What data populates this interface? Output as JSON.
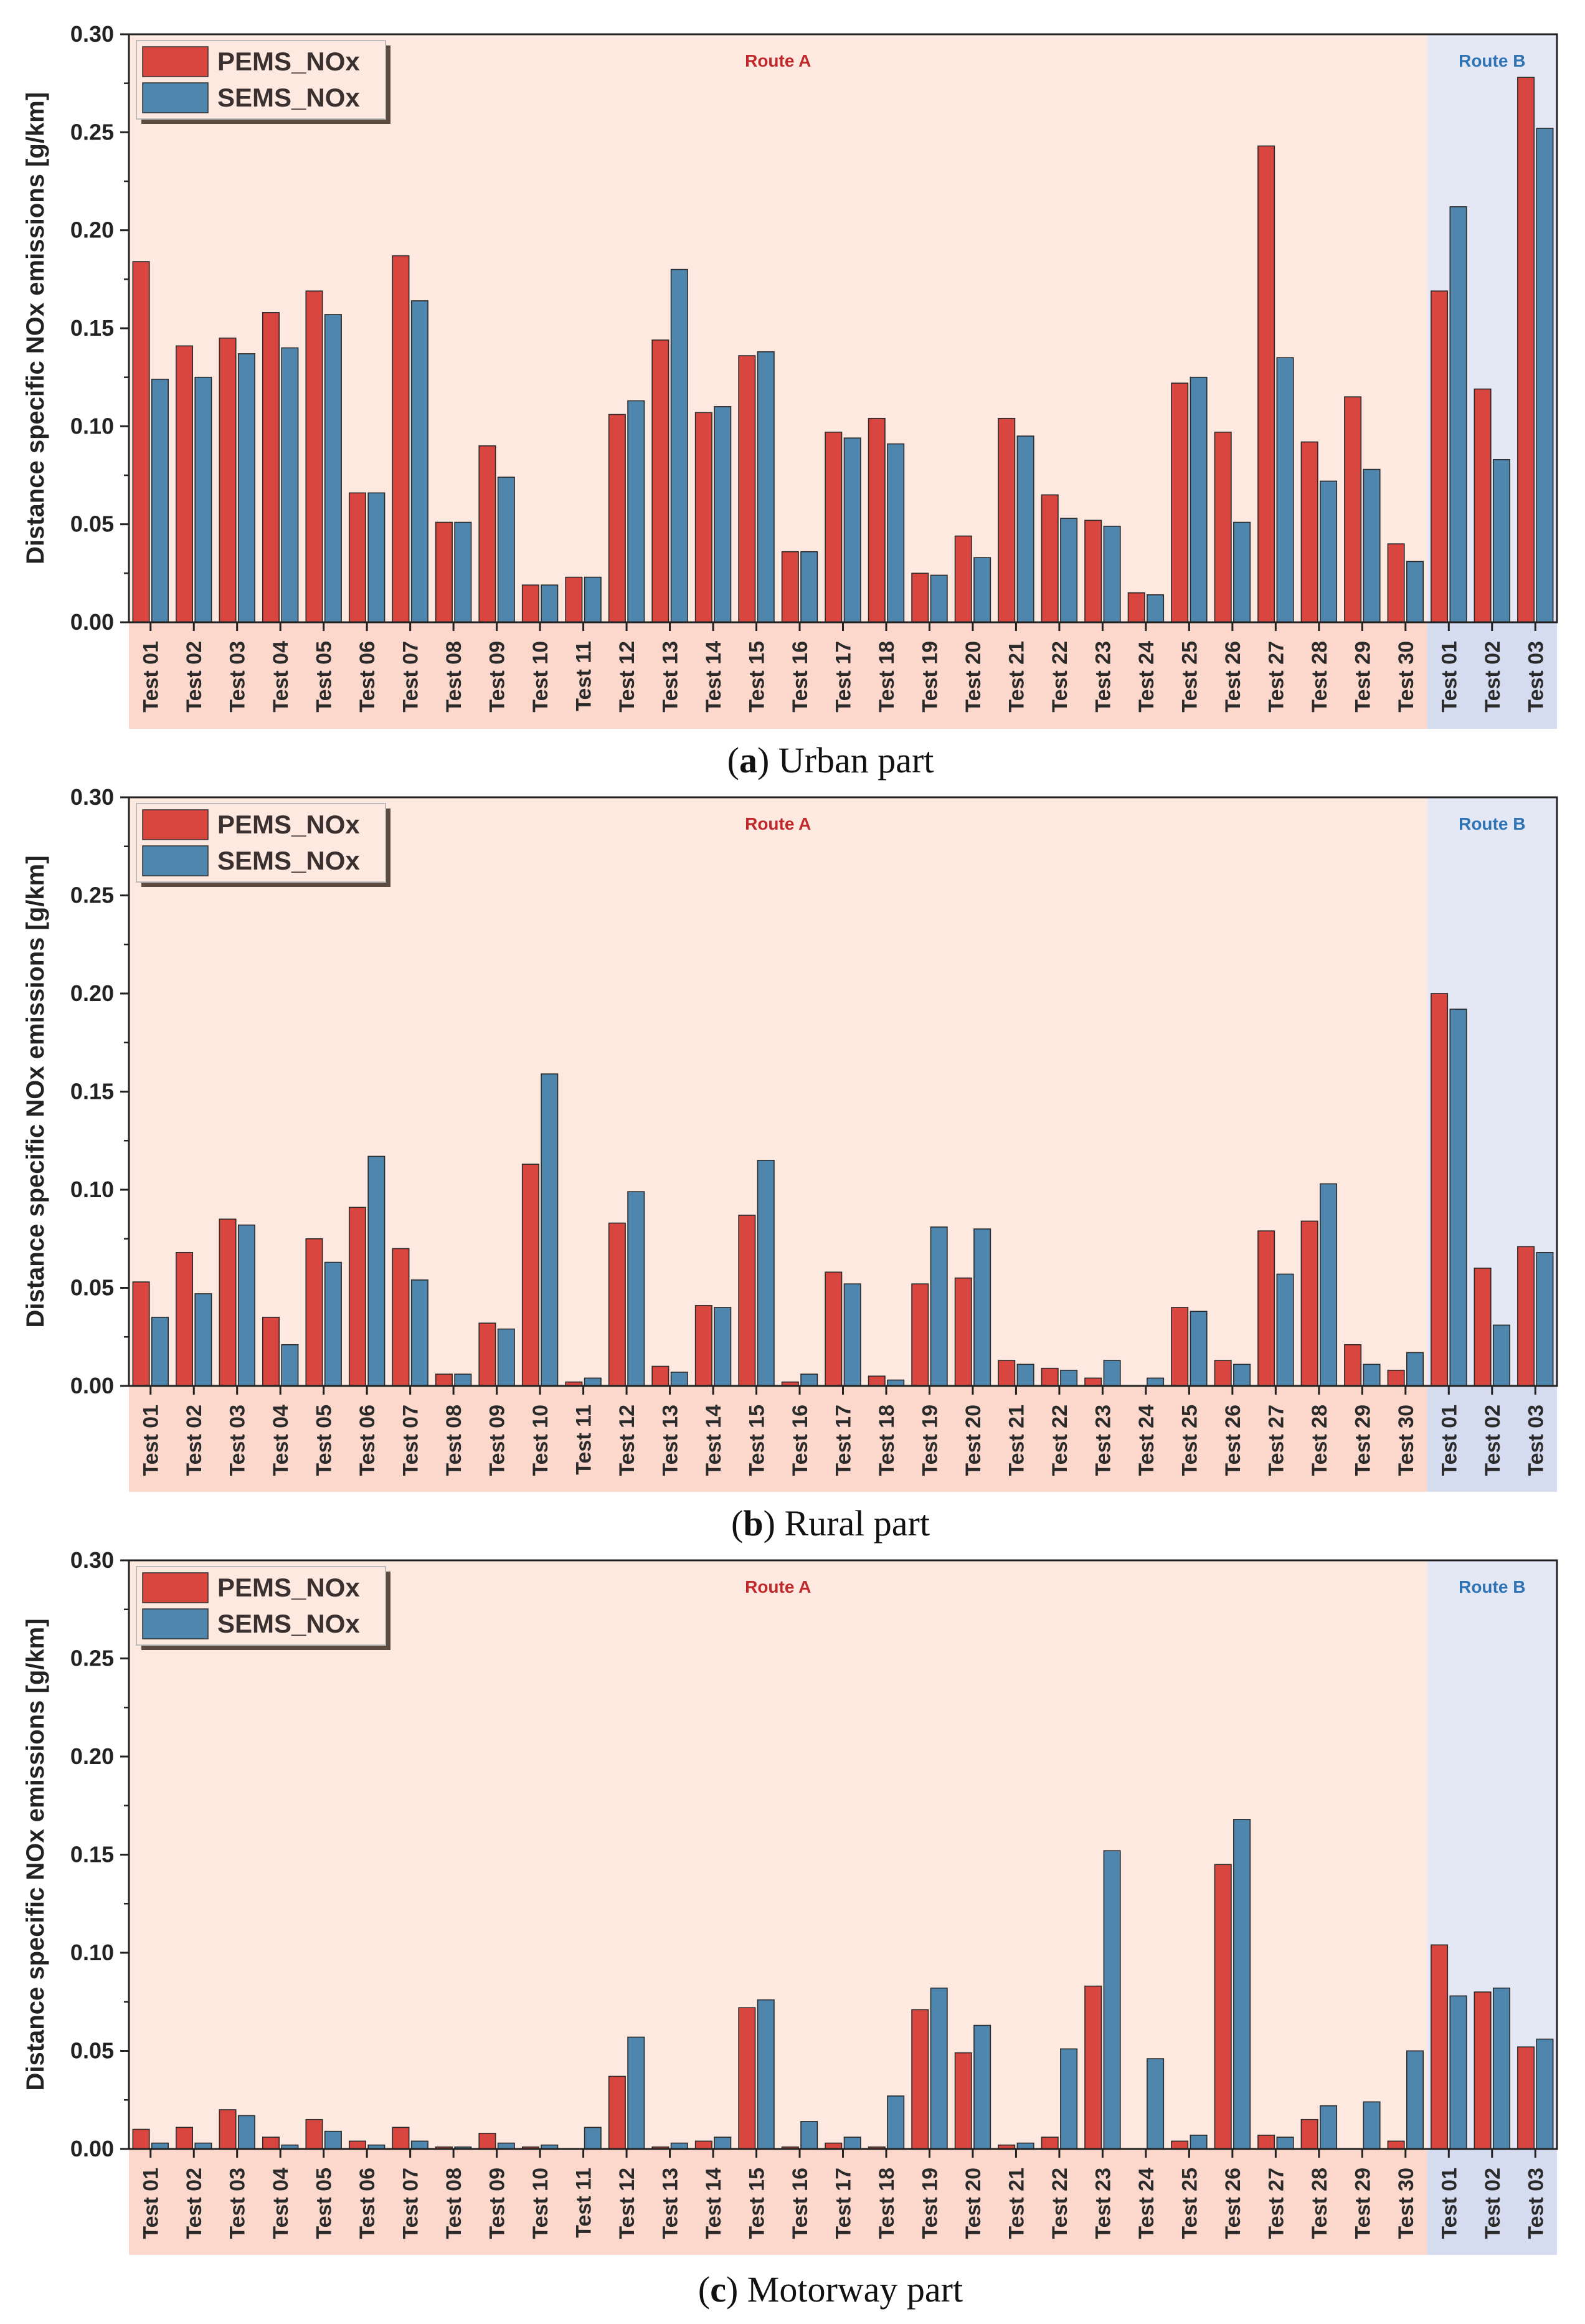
{
  "colors": {
    "pems": "#d9453f",
    "sems": "#4f86ad",
    "route_a_bg": "#fde9e0",
    "route_b_bg": "#e4e8f5",
    "route_a_text": "#c0282c",
    "route_b_text": "#2e74b5",
    "route_a_label_bg": "#fbd8cb",
    "route_b_label_bg": "#d6dcf0"
  },
  "chart_data": [
    {
      "type": "bar",
      "caption_letter": "a",
      "caption_text": " Urban part",
      "caption_open": "(",
      "caption_close": ")",
      "ylabel": "Distance specific NOx emissions [g/km]",
      "ylim": [
        0,
        0.3
      ],
      "yticks": [
        "0.00",
        "0.05",
        "0.10",
        "0.15",
        "0.20",
        "0.25",
        "0.30"
      ],
      "grid": false,
      "legend": [
        "PEMS_NOx",
        "SEMS_NOx"
      ],
      "legend_position": "top-left",
      "regions": [
        "Route A",
        "Route B"
      ],
      "categories": [
        "Test 01",
        "Test 02",
        "Test 03",
        "Test 04",
        "Test 05",
        "Test 06",
        "Test 07",
        "Test 08",
        "Test 09",
        "Test 10",
        "Test 11",
        "Test 12",
        "Test 13",
        "Test 14",
        "Test 15",
        "Test 16",
        "Test 17",
        "Test 18",
        "Test 19",
        "Test 20",
        "Test 21",
        "Test 22",
        "Test 23",
        "Test 24",
        "Test 25",
        "Test 26",
        "Test 27",
        "Test 28",
        "Test 29",
        "Test 30",
        "Test 01",
        "Test 02",
        "Test 03"
      ],
      "series": [
        {
          "name": "PEMS_NOx",
          "values": [
            0.184,
            0.141,
            0.145,
            0.158,
            0.169,
            0.066,
            0.187,
            0.051,
            0.09,
            0.019,
            0.023,
            0.106,
            0.144,
            0.107,
            0.136,
            0.036,
            0.097,
            0.104,
            0.025,
            0.044,
            0.104,
            0.065,
            0.052,
            0.015,
            0.122,
            0.097,
            0.243,
            0.092,
            0.115,
            0.04,
            0.169,
            0.119,
            0.278
          ]
        },
        {
          "name": "SEMS_NOx",
          "values": [
            0.124,
            0.125,
            0.137,
            0.14,
            0.157,
            0.066,
            0.164,
            0.051,
            0.074,
            0.019,
            0.023,
            0.113,
            0.18,
            0.11,
            0.138,
            0.036,
            0.094,
            0.091,
            0.024,
            0.033,
            0.095,
            0.053,
            0.049,
            0.014,
            0.125,
            0.051,
            0.135,
            0.072,
            0.078,
            0.031,
            0.212,
            0.083,
            0.252
          ]
        }
      ]
    },
    {
      "type": "bar",
      "caption_letter": "b",
      "caption_text": " Rural part",
      "caption_open": "(",
      "caption_close": ")",
      "ylabel": "Distance specific NOx emissions [g/km]",
      "ylim": [
        0,
        0.3
      ],
      "yticks": [
        "0.00",
        "0.05",
        "0.10",
        "0.15",
        "0.20",
        "0.25",
        "0.30"
      ],
      "grid": false,
      "legend": [
        "PEMS_NOx",
        "SEMS_NOx"
      ],
      "legend_position": "top-left",
      "regions": [
        "Route A",
        "Route B"
      ],
      "categories": [
        "Test 01",
        "Test 02",
        "Test 03",
        "Test 04",
        "Test 05",
        "Test 06",
        "Test 07",
        "Test 08",
        "Test 09",
        "Test 10",
        "Test 11",
        "Test 12",
        "Test 13",
        "Test 14",
        "Test 15",
        "Test 16",
        "Test 17",
        "Test 18",
        "Test 19",
        "Test 20",
        "Test 21",
        "Test 22",
        "Test 23",
        "Test 24",
        "Test 25",
        "Test 26",
        "Test 27",
        "Test 28",
        "Test 29",
        "Test 30",
        "Test 01",
        "Test 02",
        "Test 03"
      ],
      "series": [
        {
          "name": "PEMS_NOx",
          "values": [
            0.053,
            0.068,
            0.085,
            0.035,
            0.075,
            0.091,
            0.07,
            0.006,
            0.032,
            0.113,
            0.002,
            0.083,
            0.01,
            0.041,
            0.087,
            0.002,
            0.058,
            0.005,
            0.052,
            0.055,
            0.013,
            0.009,
            0.004,
            0.0,
            0.04,
            0.013,
            0.079,
            0.084,
            0.021,
            0.008,
            0.2,
            0.06,
            0.071
          ]
        },
        {
          "name": "SEMS_NOx",
          "values": [
            0.035,
            0.047,
            0.082,
            0.021,
            0.063,
            0.117,
            0.054,
            0.006,
            0.029,
            0.159,
            0.004,
            0.099,
            0.007,
            0.04,
            0.115,
            0.006,
            0.052,
            0.003,
            0.081,
            0.08,
            0.011,
            0.008,
            0.013,
            0.004,
            0.038,
            0.011,
            0.057,
            0.103,
            0.011,
            0.017,
            0.192,
            0.031,
            0.068
          ]
        }
      ]
    },
    {
      "type": "bar",
      "caption_letter": "c",
      "caption_text": " Motorway part",
      "caption_open": "(",
      "caption_close": ")",
      "ylabel": "Distance specific NOx emissions [g/km]",
      "ylim": [
        0,
        0.3
      ],
      "yticks": [
        "0.00",
        "0.05",
        "0.10",
        "0.15",
        "0.20",
        "0.25",
        "0.30"
      ],
      "grid": false,
      "legend": [
        "PEMS_NOx",
        "SEMS_NOx"
      ],
      "legend_position": "top-left",
      "regions": [
        "Route A",
        "Route B"
      ],
      "categories": [
        "Test 01",
        "Test 02",
        "Test 03",
        "Test 04",
        "Test 05",
        "Test 06",
        "Test 07",
        "Test 08",
        "Test 09",
        "Test 10",
        "Test 11",
        "Test 12",
        "Test 13",
        "Test 14",
        "Test 15",
        "Test 16",
        "Test 17",
        "Test 18",
        "Test 19",
        "Test 20",
        "Test 21",
        "Test 22",
        "Test 23",
        "Test 24",
        "Test 25",
        "Test 26",
        "Test 27",
        "Test 28",
        "Test 29",
        "Test 30",
        "Test 01",
        "Test 02",
        "Test 03"
      ],
      "series": [
        {
          "name": "PEMS_NOx",
          "values": [
            0.01,
            0.011,
            0.02,
            0.006,
            0.015,
            0.004,
            0.011,
            0.001,
            0.008,
            0.001,
            0.0,
            0.037,
            0.001,
            0.004,
            0.072,
            0.001,
            0.003,
            0.001,
            0.071,
            0.049,
            0.002,
            0.006,
            0.083,
            0.0,
            0.004,
            0.145,
            0.007,
            0.015,
            0.0,
            0.004,
            0.104,
            0.08,
            0.052
          ]
        },
        {
          "name": "SEMS_NOx",
          "values": [
            0.003,
            0.003,
            0.017,
            0.002,
            0.009,
            0.002,
            0.004,
            0.001,
            0.003,
            0.002,
            0.011,
            0.057,
            0.003,
            0.006,
            0.076,
            0.014,
            0.006,
            0.027,
            0.082,
            0.063,
            0.003,
            0.051,
            0.152,
            0.046,
            0.007,
            0.168,
            0.006,
            0.022,
            0.024,
            0.05,
            0.078,
            0.082,
            0.056
          ]
        }
      ]
    }
  ]
}
